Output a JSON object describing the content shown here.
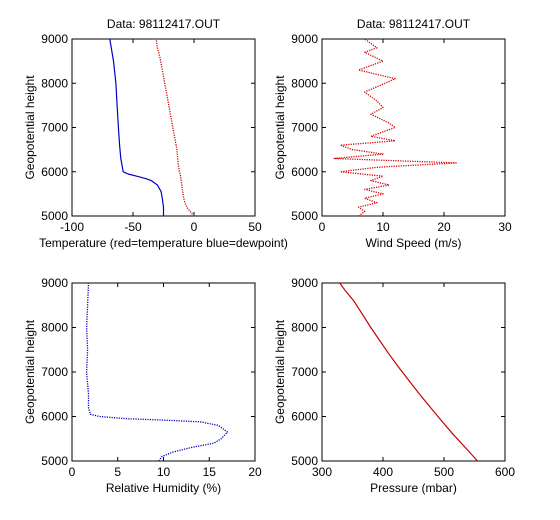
{
  "figure": {
    "background": "#ffffff",
    "panel_background": "#ffffff"
  },
  "chart_data": [
    {
      "type": "line",
      "title": "Data: 98112417.OUT",
      "xlabel": "Temperature (red=temperature blue=dewpoint)",
      "ylabel": "Geopotential height",
      "xlim": [
        -100,
        50
      ],
      "ylim": [
        5000,
        9000
      ],
      "xticks": [
        -100,
        -50,
        0,
        50
      ],
      "yticks": [
        5000,
        6000,
        7000,
        8000,
        9000
      ],
      "series": [
        {
          "color": "#d40000",
          "style": "dotted",
          "points": [
            [
              0,
              5000
            ],
            [
              -3,
              5100
            ],
            [
              -6,
              5200
            ],
            [
              -8,
              5350
            ],
            [
              -9,
              5500
            ],
            [
              -10,
              5700
            ],
            [
              -11,
              5900
            ],
            [
              -12,
              6000
            ],
            [
              -13,
              6200
            ],
            [
              -14,
              6500
            ],
            [
              -16,
              6800
            ],
            [
              -18,
              7100
            ],
            [
              -20,
              7400
            ],
            [
              -22,
              7700
            ],
            [
              -24,
              8000
            ],
            [
              -26,
              8300
            ],
            [
              -28,
              8600
            ],
            [
              -30,
              8800
            ],
            [
              -31,
              9000
            ]
          ]
        },
        {
          "color": "#0000c8",
          "style": "solid",
          "points": [
            [
              -25,
              5000
            ],
            [
              -25,
              5200
            ],
            [
              -26,
              5400
            ],
            [
              -27,
              5550
            ],
            [
              -30,
              5700
            ],
            [
              -35,
              5800
            ],
            [
              -40,
              5850
            ],
            [
              -47,
              5900
            ],
            [
              -54,
              5950
            ],
            [
              -58,
              6000
            ],
            [
              -59,
              6150
            ],
            [
              -60,
              6300
            ],
            [
              -61,
              6600
            ],
            [
              -62,
              7000
            ],
            [
              -63,
              7500
            ],
            [
              -64,
              8000
            ],
            [
              -66,
              8500
            ],
            [
              -69,
              9000
            ]
          ]
        }
      ]
    },
    {
      "type": "line",
      "title": "Data: 98112417.OUT",
      "xlabel": "Wind Speed (m/s)",
      "ylabel": "Geopotential height",
      "xlim": [
        0,
        30
      ],
      "ylim": [
        5000,
        9000
      ],
      "xticks": [
        0,
        10,
        20,
        30
      ],
      "yticks": [
        5000,
        6000,
        7000,
        8000,
        9000
      ],
      "series": [
        {
          "color": "#d40000",
          "style": "dotted",
          "points": [
            [
              6,
              5000
            ],
            [
              7,
              5100
            ],
            [
              6,
              5200
            ],
            [
              9,
              5300
            ],
            [
              7,
              5400
            ],
            [
              10,
              5500
            ],
            [
              7,
              5600
            ],
            [
              11,
              5700
            ],
            [
              8,
              5800
            ],
            [
              10,
              5900
            ],
            [
              3,
              6000
            ],
            [
              9,
              6100
            ],
            [
              22,
              6200
            ],
            [
              2,
              6300
            ],
            [
              10,
              6400
            ],
            [
              5,
              6500
            ],
            [
              3,
              6600
            ],
            [
              12,
              6700
            ],
            [
              8,
              6800
            ],
            [
              12,
              7000
            ],
            [
              11,
              7100
            ],
            [
              8,
              7300
            ],
            [
              10,
              7450
            ],
            [
              9,
              7600
            ],
            [
              7,
              7800
            ],
            [
              12,
              8100
            ],
            [
              6,
              8300
            ],
            [
              10,
              8500
            ],
            [
              7,
              8700
            ],
            [
              9,
              8800
            ],
            [
              7,
              9000
            ]
          ]
        }
      ]
    },
    {
      "type": "line",
      "title": "",
      "xlabel": "Relative Humidity (%)",
      "ylabel": "Geopotential height",
      "xlim": [
        0,
        20
      ],
      "ylim": [
        5000,
        9000
      ],
      "xticks": [
        0,
        5,
        10,
        15,
        20
      ],
      "yticks": [
        5000,
        6000,
        7000,
        8000,
        9000
      ],
      "series": [
        {
          "color": "#0000c8",
          "style": "dotted",
          "points": [
            [
              9.5,
              5000
            ],
            [
              9.8,
              5100
            ],
            [
              11,
              5200
            ],
            [
              13,
              5300
            ],
            [
              15.5,
              5400
            ],
            [
              16.3,
              5500
            ],
            [
              17,
              5650
            ],
            [
              16,
              5800
            ],
            [
              14,
              5880
            ],
            [
              10,
              5920
            ],
            [
              6,
              5950
            ],
            [
              3,
              6000
            ],
            [
              2,
              6050
            ],
            [
              1.8,
              6200
            ],
            [
              1.8,
              6500
            ],
            [
              1.6,
              7000
            ],
            [
              1.7,
              7500
            ],
            [
              1.6,
              8000
            ],
            [
              1.7,
              8500
            ],
            [
              1.8,
              9000
            ]
          ]
        }
      ]
    },
    {
      "type": "line",
      "title": "",
      "xlabel": "Pressure (mbar)",
      "ylabel": "Geopotential height",
      "xlim": [
        300,
        600
      ],
      "ylim": [
        5000,
        9000
      ],
      "xticks": [
        300,
        400,
        500,
        600
      ],
      "yticks": [
        5000,
        6000,
        7000,
        8000,
        9000
      ],
      "series": [
        {
          "color": "#c80000",
          "style": "solid",
          "points": [
            [
              555,
              5000
            ],
            [
              535,
              5300
            ],
            [
              515,
              5600
            ],
            [
              496,
              5900
            ],
            [
              478,
              6200
            ],
            [
              460,
              6500
            ],
            [
              443,
              6800
            ],
            [
              426,
              7100
            ],
            [
              410,
              7400
            ],
            [
              395,
              7700
            ],
            [
              380,
              8000
            ],
            [
              366,
              8300
            ],
            [
              352,
              8600
            ],
            [
              337,
              8850
            ],
            [
              329,
              9000
            ]
          ]
        }
      ]
    }
  ]
}
